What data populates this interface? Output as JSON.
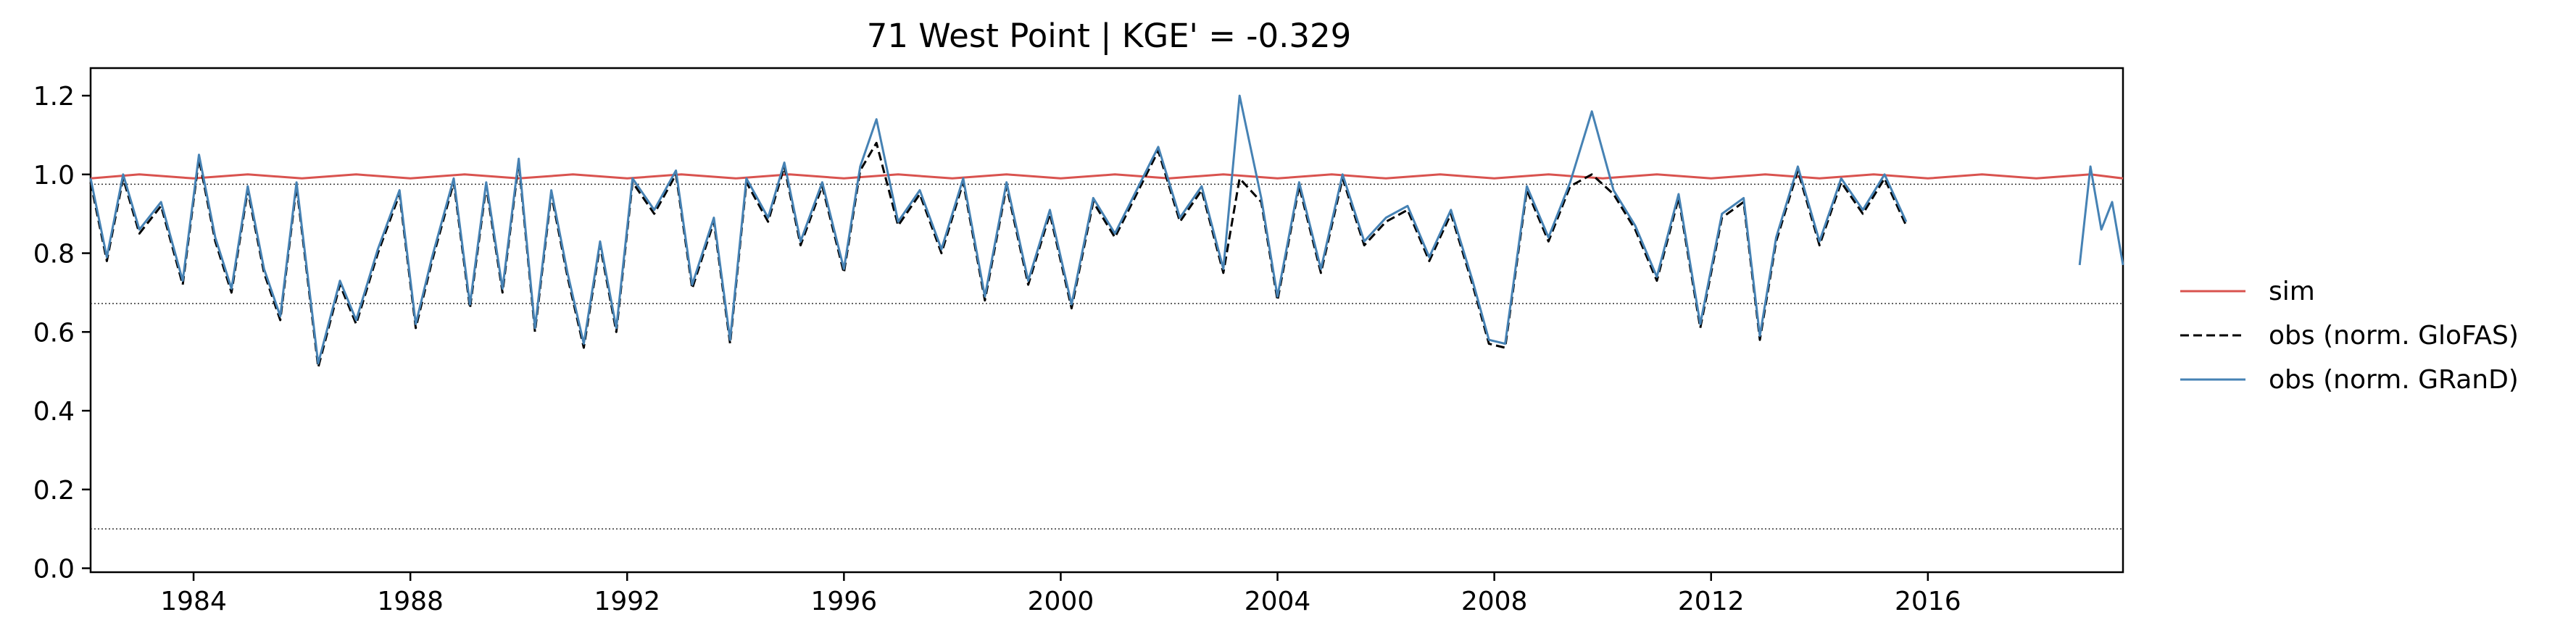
{
  "chart_data": {
    "type": "line",
    "title": "71  West Point | KGE' = -0.329",
    "xlabel": "",
    "ylabel": "",
    "xlim": [
      1982.1,
      2019.6
    ],
    "ylim": [
      -0.01,
      1.27
    ],
    "x_ticks": [
      1984,
      1988,
      1992,
      1996,
      2000,
      2004,
      2008,
      2012,
      2016
    ],
    "x_tick_labels": [
      "1984",
      "1988",
      "1992",
      "1996",
      "2000",
      "2004",
      "2008",
      "2012",
      "2016"
    ],
    "y_ticks": [
      0.0,
      0.2,
      0.4,
      0.6,
      0.8,
      1.0,
      1.2
    ],
    "y_tick_labels": [
      "0.0",
      "0.2",
      "0.4",
      "0.6",
      "0.8",
      "1.0",
      "1.2"
    ],
    "reference_lines": [
      0.975,
      0.672,
      0.1
    ],
    "grid": false,
    "legend_position": "right",
    "series": [
      {
        "name": "sim",
        "color": "#d9534f",
        "style": "solid",
        "x": [
          1982.1,
          1983.0,
          1984.0,
          1985.0,
          1986.0,
          1987.0,
          1988.0,
          1989.0,
          1990.0,
          1991.0,
          1992.0,
          1993.0,
          1994.0,
          1995.0,
          1996.0,
          1997.0,
          1998.0,
          1999.0,
          2000.0,
          2001.0,
          2002.0,
          2003.0,
          2004.0,
          2005.0,
          2006.0,
          2007.0,
          2008.0,
          2009.0,
          2010.0,
          2011.0,
          2012.0,
          2013.0,
          2014.0,
          2015.0,
          2016.0,
          2017.0,
          2018.0,
          2019.0,
          2019.6
        ],
        "y": [
          0.99,
          1.0,
          0.99,
          1.0,
          0.99,
          1.0,
          0.99,
          1.0,
          0.99,
          1.0,
          0.99,
          1.0,
          0.99,
          1.0,
          0.99,
          1.0,
          0.99,
          1.0,
          0.99,
          1.0,
          0.99,
          1.0,
          0.99,
          1.0,
          0.99,
          1.0,
          0.99,
          1.0,
          0.99,
          1.0,
          0.99,
          1.0,
          0.99,
          1.0,
          0.99,
          1.0,
          0.99,
          1.0,
          0.99
        ]
      },
      {
        "name": "obs (norm. GloFAS)",
        "color": "#000000",
        "style": "dashed",
        "x": [
          1982.1,
          1982.4,
          1982.7,
          1983.0,
          1983.4,
          1983.8,
          1984.1,
          1984.4,
          1984.7,
          1985.0,
          1985.3,
          1985.6,
          1985.9,
          1986.3,
          1986.7,
          1987.0,
          1987.4,
          1987.8,
          1988.1,
          1988.4,
          1988.8,
          1989.1,
          1989.4,
          1989.7,
          1990.0,
          1990.3,
          1990.6,
          1990.9,
          1991.2,
          1991.5,
          1991.8,
          1992.1,
          1992.5,
          1992.9,
          1993.2,
          1993.6,
          1993.9,
          1994.2,
          1994.6,
          1994.9,
          1995.2,
          1995.6,
          1996.0,
          1996.3,
          1996.6,
          1997.0,
          1997.4,
          1997.8,
          1998.2,
          1998.6,
          1999.0,
          1999.4,
          1999.8,
          2000.2,
          2000.6,
          2001.0,
          2001.4,
          2001.8,
          2002.2,
          2002.6,
          2003.0,
          2003.3,
          2003.7,
          2004.0,
          2004.4,
          2004.8,
          2005.2,
          2005.6,
          2006.0,
          2006.4,
          2006.8,
          2007.2,
          2007.6,
          2007.9,
          2008.2,
          2008.6,
          2009.0,
          2009.4,
          2009.8,
          2010.2,
          2010.6,
          2011.0,
          2011.4,
          2011.8,
          2012.2,
          2012.6,
          2012.9,
          2013.2,
          2013.6,
          2014.0,
          2014.4,
          2014.8,
          2015.2,
          2015.6
        ],
        "y": [
          0.98,
          0.78,
          0.99,
          0.85,
          0.92,
          0.72,
          1.04,
          0.83,
          0.7,
          0.96,
          0.75,
          0.63,
          0.97,
          0.51,
          0.72,
          0.62,
          0.8,
          0.95,
          0.61,
          0.78,
          0.98,
          0.66,
          0.97,
          0.7,
          1.03,
          0.6,
          0.95,
          0.74,
          0.56,
          0.82,
          0.6,
          0.98,
          0.9,
          1.0,
          0.71,
          0.88,
          0.57,
          0.98,
          0.88,
          1.02,
          0.82,
          0.97,
          0.75,
          1.01,
          1.08,
          0.87,
          0.95,
          0.8,
          0.98,
          0.68,
          0.97,
          0.72,
          0.9,
          0.66,
          0.93,
          0.84,
          0.95,
          1.06,
          0.88,
          0.96,
          0.75,
          0.99,
          0.93,
          0.68,
          0.97,
          0.75,
          0.99,
          0.82,
          0.88,
          0.91,
          0.78,
          0.9,
          0.72,
          0.57,
          0.56,
          0.96,
          0.83,
          0.97,
          1.0,
          0.95,
          0.86,
          0.73,
          0.94,
          0.61,
          0.89,
          0.93,
          0.58,
          0.83,
          1.01,
          0.82,
          0.98,
          0.9,
          0.99,
          0.87
        ]
      },
      {
        "name": "obs (norm. GRanD)",
        "color": "#4682b4",
        "style": "solid",
        "segments": [
          {
            "x": [
              1982.1,
              1982.4,
              1982.7,
              1983.0,
              1983.4,
              1983.8,
              1984.1,
              1984.4,
              1984.7,
              1985.0,
              1985.3,
              1985.6,
              1985.9,
              1986.3,
              1986.7,
              1987.0,
              1987.4,
              1987.8,
              1988.1,
              1988.4,
              1988.8,
              1989.1,
              1989.4,
              1989.7,
              1990.0,
              1990.3,
              1990.6,
              1990.9,
              1991.2,
              1991.5,
              1991.8,
              1992.1,
              1992.5,
              1992.9,
              1993.2,
              1993.6,
              1993.9,
              1994.2,
              1994.6,
              1994.9,
              1995.2,
              1995.6,
              1996.0,
              1996.3,
              1996.6,
              1997.0,
              1997.4,
              1997.8,
              1998.2,
              1998.6,
              1999.0,
              1999.4,
              1999.8,
              2000.2,
              2000.6,
              2001.0,
              2001.4,
              2001.8,
              2002.2,
              2002.6,
              2003.0,
              2003.3,
              2003.7,
              2004.0,
              2004.4,
              2004.8,
              2005.2,
              2005.6,
              2006.0,
              2006.4,
              2006.8,
              2007.2,
              2007.6,
              2007.9,
              2008.2,
              2008.6,
              2009.0,
              2009.4,
              2009.8,
              2010.2,
              2010.6,
              2011.0,
              2011.4,
              2011.8,
              2012.2,
              2012.6,
              2012.9,
              2013.2,
              2013.6,
              2014.0,
              2014.4,
              2014.8,
              2015.2,
              2015.6
            ],
            "y": [
              0.99,
              0.79,
              1.0,
              0.86,
              0.93,
              0.73,
              1.05,
              0.84,
              0.71,
              0.97,
              0.76,
              0.64,
              0.98,
              0.52,
              0.73,
              0.63,
              0.81,
              0.96,
              0.62,
              0.79,
              0.99,
              0.67,
              0.98,
              0.71,
              1.04,
              0.61,
              0.96,
              0.75,
              0.57,
              0.83,
              0.61,
              0.99,
              0.91,
              1.01,
              0.72,
              0.89,
              0.58,
              0.99,
              0.89,
              1.03,
              0.83,
              0.98,
              0.76,
              1.02,
              1.14,
              0.88,
              0.96,
              0.81,
              0.99,
              0.69,
              0.98,
              0.73,
              0.91,
              0.67,
              0.94,
              0.85,
              0.96,
              1.07,
              0.89,
              0.97,
              0.76,
              1.2,
              0.94,
              0.69,
              0.98,
              0.76,
              1.0,
              0.83,
              0.89,
              0.92,
              0.79,
              0.91,
              0.73,
              0.58,
              0.57,
              0.97,
              0.84,
              0.98,
              1.16,
              0.96,
              0.87,
              0.74,
              0.95,
              0.62,
              0.9,
              0.94,
              0.59,
              0.84,
              1.02,
              0.83,
              0.99,
              0.91,
              1.0,
              0.88
            ]
          },
          {
            "x": [
              2018.8,
              2019.0,
              2019.2,
              2019.4,
              2019.6
            ],
            "y": [
              0.77,
              1.02,
              0.86,
              0.93,
              0.77
            ]
          }
        ]
      }
    ]
  }
}
